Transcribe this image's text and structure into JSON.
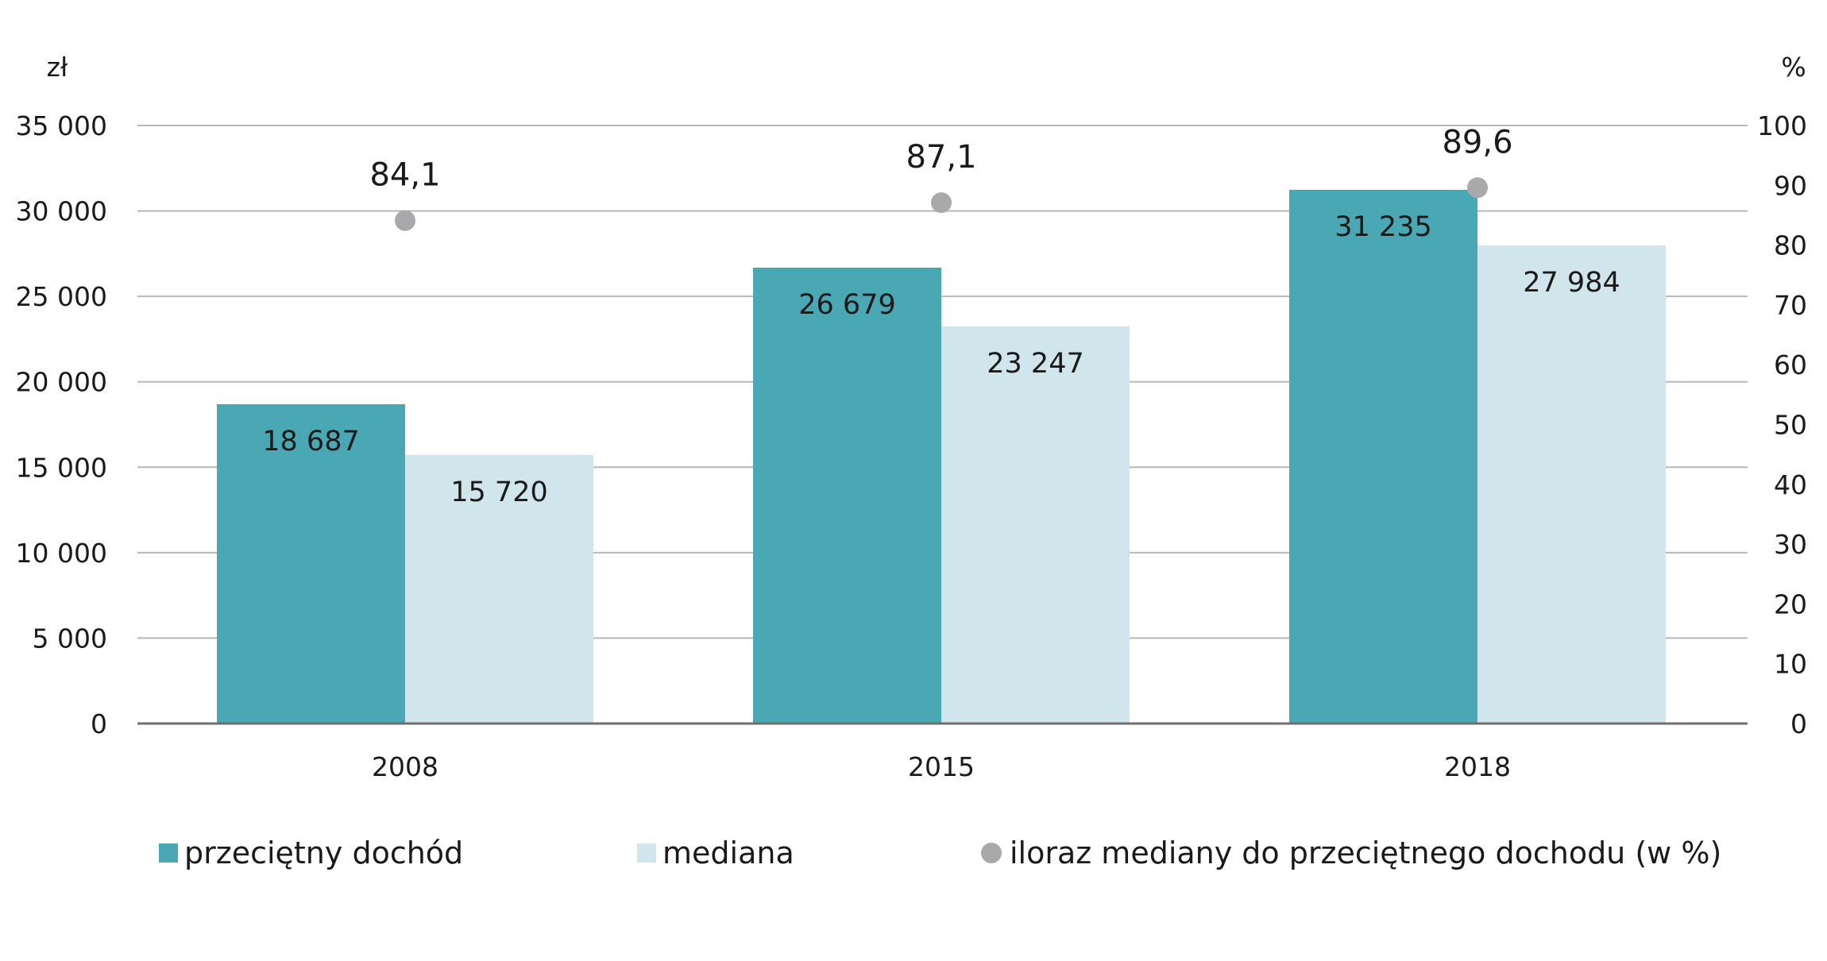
{
  "chart_data": {
    "type": "bar",
    "left_axis_unit": "zł",
    "right_axis_unit": "%",
    "categories": [
      "2008",
      "2015",
      "2018"
    ],
    "left_ylim": [
      0,
      35000
    ],
    "left_ticks": [
      "0",
      "5 000",
      "10 000",
      "15 000",
      "20 000",
      "25 000",
      "30 000",
      "35 000"
    ],
    "right_ylim": [
      0,
      100
    ],
    "right_ticks": [
      "0",
      "10",
      "20",
      "30",
      "40",
      "50",
      "60",
      "70",
      "80",
      "90",
      "100"
    ],
    "series": [
      {
        "name": "przeciętny dochód",
        "kind": "bar",
        "axis": "left",
        "color": "#4aa8b4",
        "values": [
          18687,
          26679,
          31235
        ],
        "labels": [
          "18 687",
          "26 679",
          "31 235"
        ]
      },
      {
        "name": "mediana",
        "kind": "bar",
        "axis": "left",
        "color": "#d1e6ec",
        "values": [
          15720,
          23247,
          27984
        ],
        "labels": [
          "15 720",
          "23 247",
          "27 984"
        ]
      },
      {
        "name": "iloraz mediany do przeciętnego dochodu (w %)",
        "kind": "scatter",
        "axis": "right",
        "color": "#a9a9ab",
        "values": [
          84.1,
          87.1,
          89.6
        ],
        "labels": [
          "84,1",
          "87,1",
          "89,6"
        ]
      }
    ],
    "grid": true,
    "legend_position": "bottom"
  }
}
